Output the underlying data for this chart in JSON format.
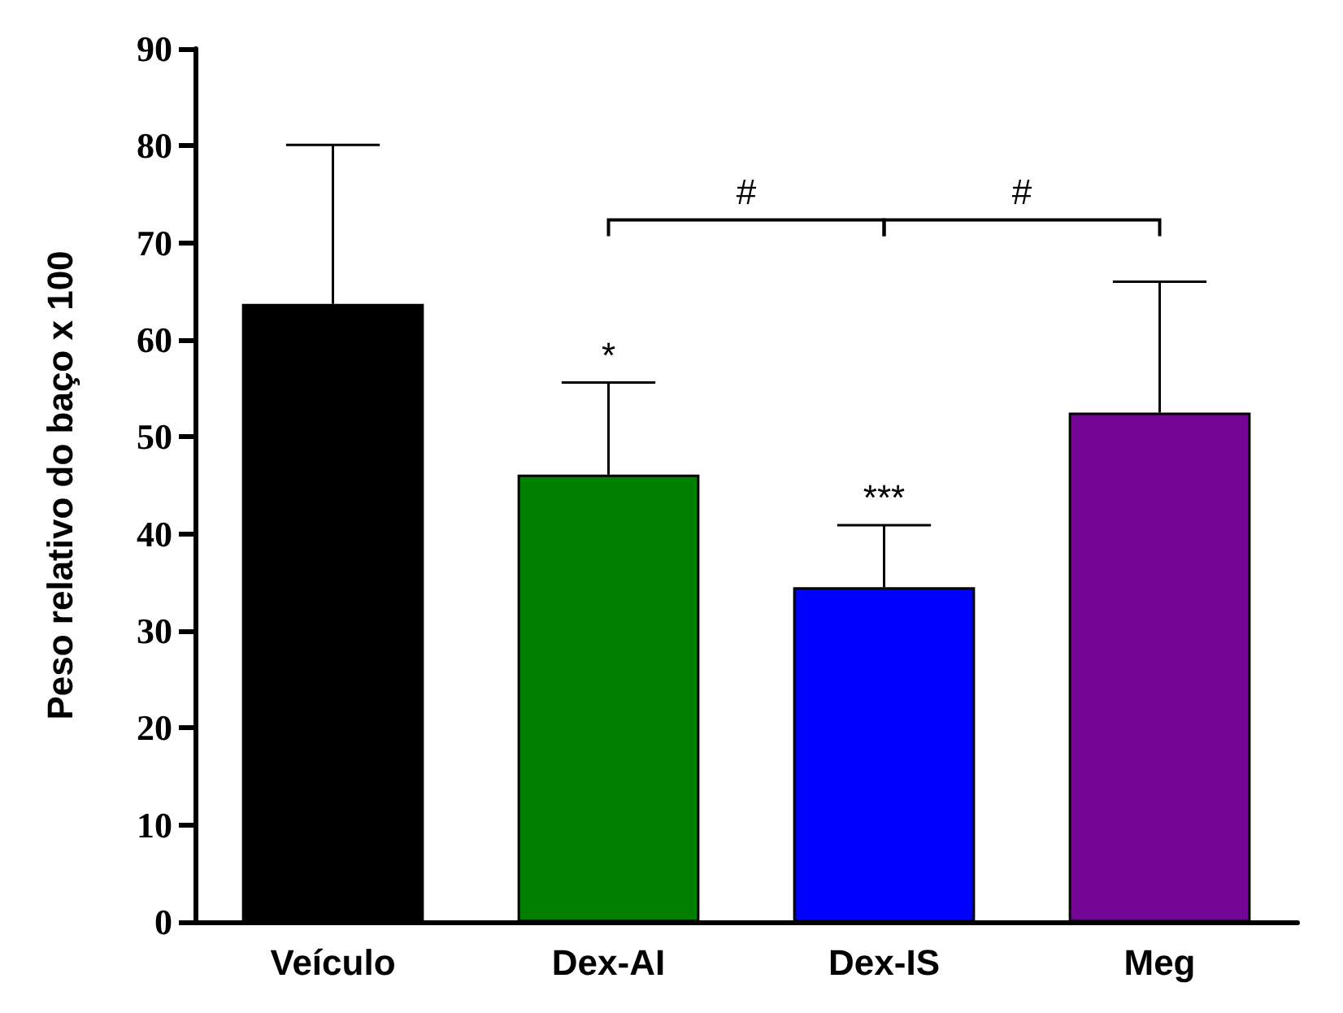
{
  "chart_data": {
    "type": "bar",
    "ylabel": "Peso relativo do baço x 100",
    "categories": [
      "Veículo",
      "Dex-AI",
      "Dex-IS",
      "Meg"
    ],
    "values": [
      63.7,
      46.1,
      34.5,
      52.5
    ],
    "colors": [
      "#000000",
      "#008000",
      "#0000ff",
      "#730695"
    ],
    "errors": [
      [
        63.7,
        80.1
      ],
      [
        46.1,
        55.6
      ],
      [
        34.5,
        40.9
      ],
      [
        52.5,
        66.0
      ]
    ],
    "ylim": [
      0,
      90
    ],
    "yticks": [
      0,
      10,
      20,
      30,
      40,
      50,
      60,
      70,
      80,
      90
    ],
    "grid": false,
    "annotations": [
      {
        "text": "*",
        "x": "Dex-AI",
        "y": 55.6
      },
      {
        "text": "***",
        "x": "Dex-IS",
        "y": 40.9
      },
      "#",
      "#"
    ]
  }
}
